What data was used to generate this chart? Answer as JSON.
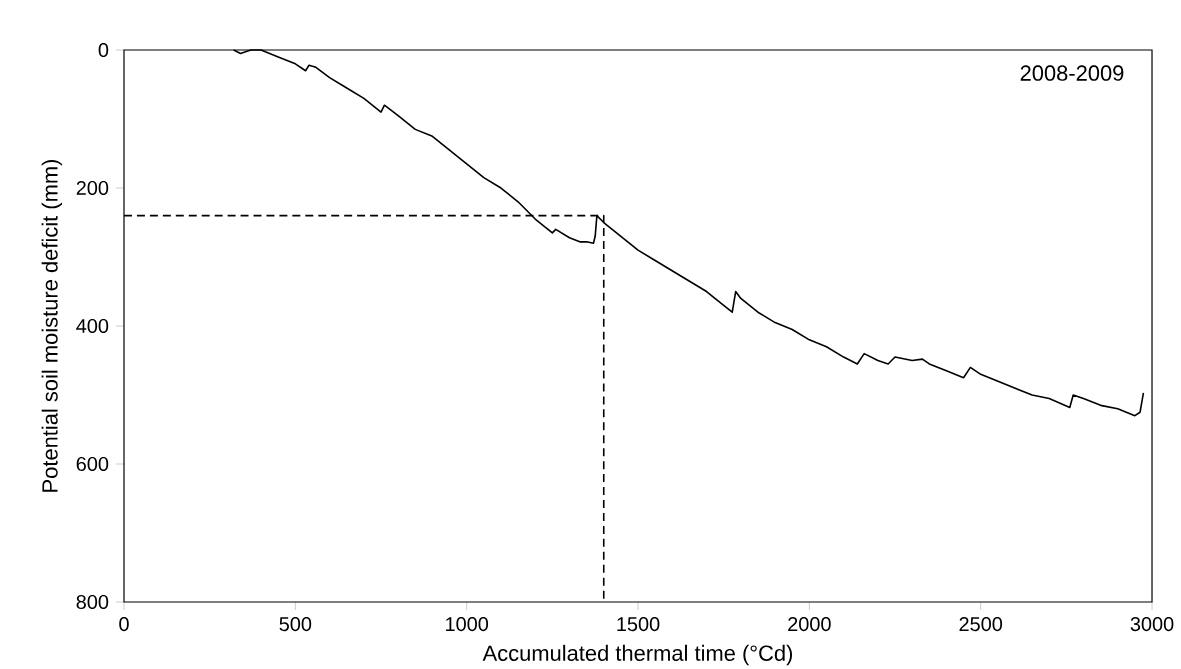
{
  "chart_data": {
    "type": "line",
    "xlabel": "Accumulated thermal time (°Cd)",
    "ylabel": "Potential soil moisture deficit (mm)",
    "annotations": [
      "2008-2009"
    ],
    "xlim": [
      0,
      3000
    ],
    "xticks": [
      0,
      500,
      1000,
      1500,
      2000,
      2500,
      3000
    ],
    "ylim": [
      800,
      0
    ],
    "yticks": [
      0,
      200,
      400,
      600,
      800
    ],
    "series": [
      {
        "color": "#000000",
        "line_style": "solid",
        "x": [
          320,
          340,
          370,
          400,
          450,
          500,
          530,
          540,
          560,
          600,
          650,
          700,
          750,
          760,
          800,
          850,
          900,
          950,
          1000,
          1050,
          1100,
          1150,
          1200,
          1250,
          1260,
          1300,
          1330,
          1350,
          1370,
          1375,
          1380,
          1400,
          1450,
          1500,
          1550,
          1600,
          1650,
          1700,
          1750,
          1775,
          1785,
          1800,
          1850,
          1900,
          1950,
          2000,
          2050,
          2100,
          2140,
          2160,
          2200,
          2230,
          2250,
          2300,
          2330,
          2350,
          2400,
          2450,
          2470,
          2500,
          2550,
          2600,
          2650,
          2700,
          2760,
          2770,
          2800,
          2850,
          2900,
          2950,
          2965,
          2975
        ],
        "values": [
          0,
          5,
          0,
          0,
          10,
          20,
          30,
          22,
          25,
          40,
          55,
          70,
          90,
          80,
          95,
          115,
          125,
          145,
          165,
          185,
          200,
          220,
          245,
          265,
          260,
          272,
          278,
          278,
          280,
          270,
          240,
          250,
          270,
          290,
          305,
          320,
          335,
          350,
          370,
          380,
          350,
          360,
          380,
          395,
          405,
          420,
          430,
          445,
          455,
          440,
          450,
          455,
          445,
          450,
          448,
          455,
          465,
          475,
          460,
          470,
          480,
          490,
          500,
          505,
          518,
          500,
          505,
          515,
          520,
          530,
          525,
          497
        ]
      },
      {
        "color": "#000000",
        "line_style": "dashed",
        "x": [
          0,
          1400,
          1400
        ],
        "values": [
          240,
          240,
          800
        ]
      }
    ]
  }
}
